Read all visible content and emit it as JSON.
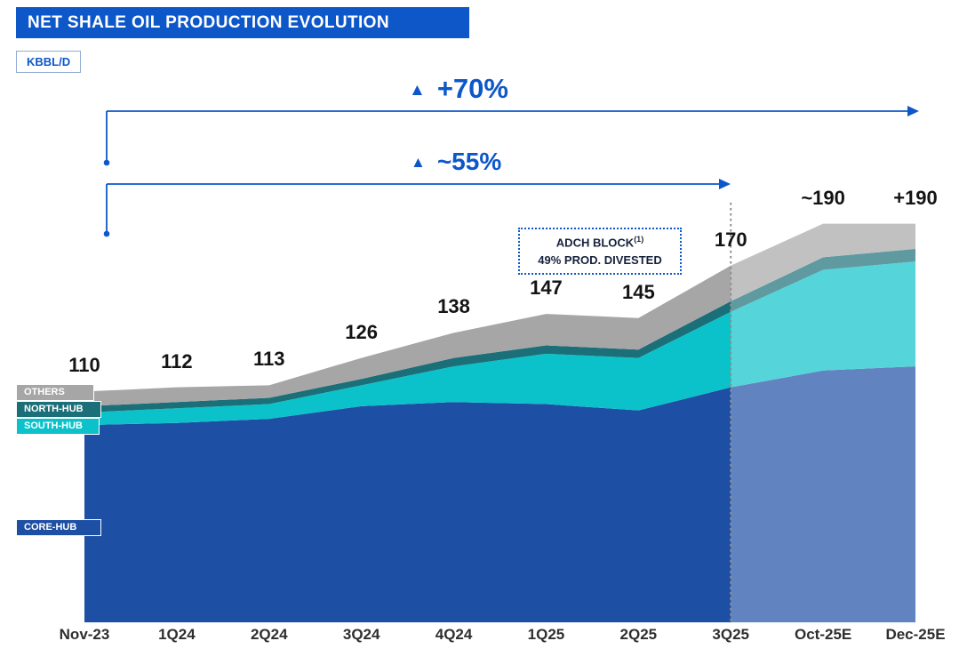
{
  "header": {
    "title": "NET SHALE OIL PRODUCTION EVOLUTION",
    "unit": "KBBL/D"
  },
  "theme": {
    "accent": "#0d57c9",
    "forecast_divider": "#8f8f8f"
  },
  "annotations": {
    "growth_full": {
      "icon": "▲",
      "label": "+70%"
    },
    "growth_partial": {
      "icon": "▲",
      "label": "~55%"
    },
    "divestment_note": {
      "line1": "ADCH BLOCK",
      "superscript": "(1)",
      "line2": "49% PROD. DIVESTED"
    }
  },
  "legend": {
    "items": [
      {
        "id": "others",
        "label": "OTHERS",
        "color": "#a6a6a6"
      },
      {
        "id": "north-hub",
        "label": "NORTH-HUB",
        "color": "#1b6f78"
      },
      {
        "id": "south-hub",
        "label": "SOUTH-HUB",
        "color": "#0cc2ca"
      },
      {
        "id": "core-hub",
        "label": "CORE-HUB",
        "color": "#1d4fa5"
      }
    ]
  },
  "chart_data": {
    "type": "area",
    "stacked": true,
    "title": "NET SHALE OIL PRODUCTION EVOLUTION",
    "ylabel": "KBBL/D",
    "ylim": [
      0,
      200
    ],
    "grid": false,
    "legend_position": "left-overlay",
    "categories": [
      "Nov-23",
      "1Q24",
      "2Q24",
      "3Q24",
      "4Q24",
      "1Q25",
      "2Q25",
      "3Q25",
      "Oct-25E",
      "Dec-25E"
    ],
    "series": [
      {
        "name": "CORE-HUB",
        "color": "#1d4fa5",
        "values": [
          94,
          95,
          97,
          103,
          105,
          104,
          101,
          112,
          120,
          122
        ]
      },
      {
        "name": "SOUTH-HUB",
        "color": "#0cc2ca",
        "values": [
          6,
          7,
          7,
          10,
          17,
          24,
          25,
          36,
          48,
          50
        ]
      },
      {
        "name": "NORTH-HUB",
        "color": "#1b6f78",
        "values": [
          3,
          3,
          3,
          3,
          4,
          4,
          4,
          5,
          6,
          6
        ]
      },
      {
        "name": "OTHERS",
        "color": "#a6a6a6",
        "values": [
          7,
          7,
          6,
          10,
          12,
          15,
          15,
          17,
          16,
          12
        ]
      }
    ],
    "totals": [
      110,
      112,
      113,
      126,
      138,
      147,
      145,
      170,
      190,
      190
    ],
    "total_labels": [
      "110",
      "112",
      "113",
      "126",
      "138",
      "147",
      "145",
      "170",
      "~190",
      "+190"
    ],
    "forecast_start_category": "3Q25",
    "forecast_start_index": 7
  }
}
